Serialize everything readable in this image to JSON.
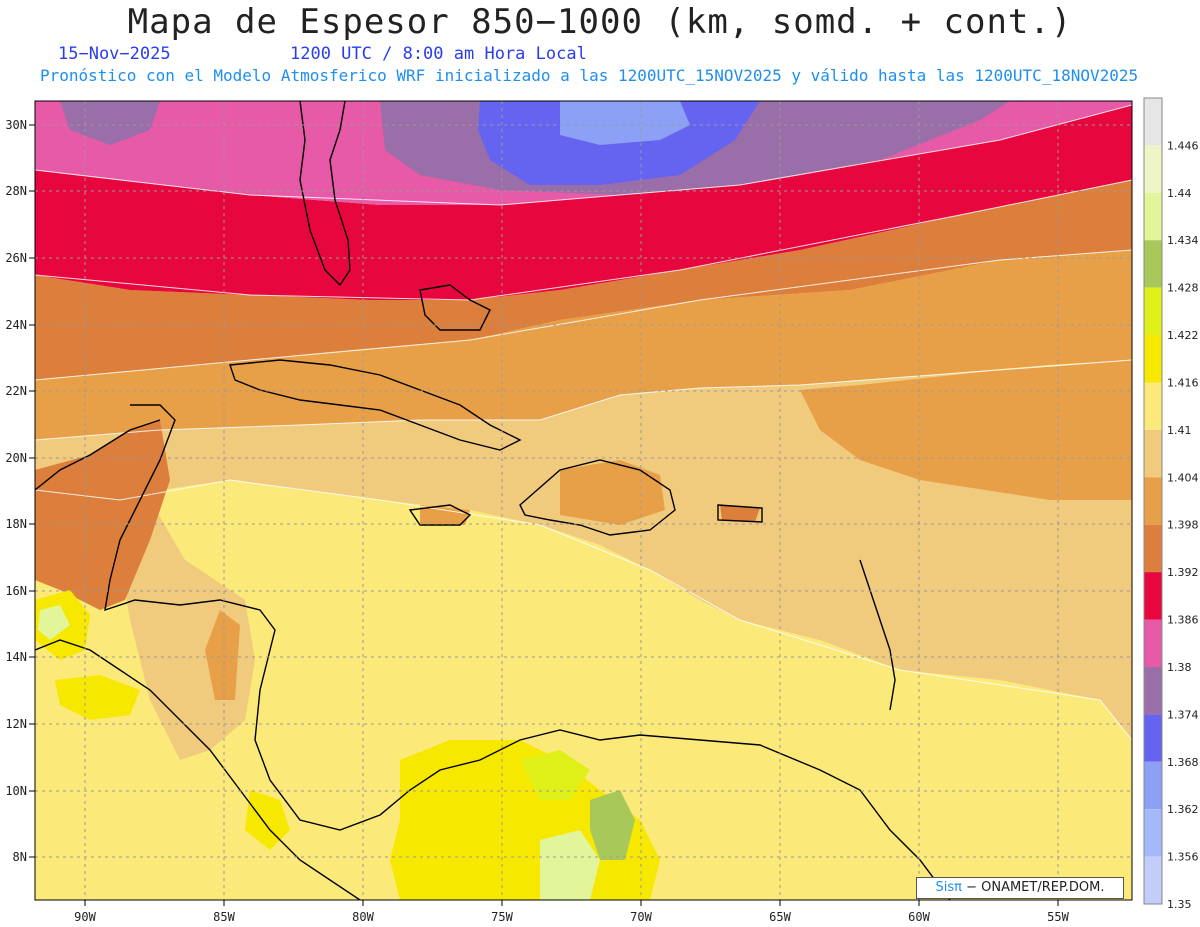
{
  "header": {
    "title": "Mapa de Espesor 850−1000 (km, somd. + cont.)",
    "date": "15−Nov−2025",
    "time": "1200 UTC / 8:00 am Hora Local",
    "subtitle": "Pronóstico con el Modelo Atmosferico WRF inicializado a las 1200UTC_15NOV2025 y válido hasta las  1200UTC_18NOV2025"
  },
  "map": {
    "lon_labels": [
      "90W",
      "85W",
      "80W",
      "75W",
      "70W",
      "65W",
      "60W",
      "55W"
    ],
    "lat_labels": [
      "30N",
      "28N",
      "26N",
      "24N",
      "22N",
      "20N",
      "18N",
      "16N",
      "14N",
      "12N",
      "10N",
      "8N"
    ]
  },
  "colorbar": {
    "labels": [
      "1.446",
      "1.44",
      "1.434",
      "1.428",
      "1.422",
      "1.416",
      "1.41",
      "1.404",
      "1.398",
      "1.392",
      "1.386",
      "1.38",
      "1.374",
      "1.368",
      "1.362",
      "1.356",
      "1.35"
    ],
    "colors": [
      "#e6e6e6",
      "#f0f5c8",
      "#e3f59a",
      "#a8c95a",
      "#dff018",
      "#f7e800",
      "#fbe97a",
      "#f0ca7d",
      "#e8a048",
      "#dc7f3c",
      "#e8063e",
      "#e65aa8",
      "#9a6ea8",
      "#6464f0",
      "#8ca0f5",
      "#a5b9fa",
      "#c3cdfa"
    ]
  },
  "credit": {
    "brand": "Sisπ",
    "text": "− ONAMET/REP.DOM."
  }
}
